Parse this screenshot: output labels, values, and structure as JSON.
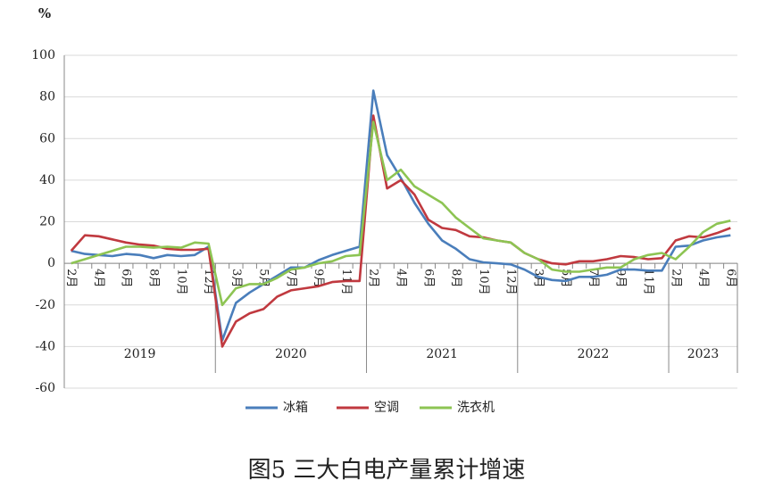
{
  "chart_data": {
    "type": "line",
    "title": "图5 三大白电产量累计增速",
    "y_unit": "%",
    "categories": [
      "2月",
      null,
      "4月",
      null,
      "6月",
      null,
      "8月",
      null,
      "10月",
      null,
      "12月",
      null,
      "3月",
      null,
      "5月",
      null,
      "7月",
      null,
      "9月",
      null,
      "11月",
      null,
      "2月",
      null,
      "4月",
      null,
      "6月",
      null,
      "8月",
      null,
      "10月",
      null,
      "12月",
      null,
      "3月",
      null,
      "5月",
      null,
      "7月",
      null,
      "9月",
      null,
      "11月",
      null,
      "2月",
      null,
      "4月",
      null,
      "6月"
    ],
    "groups": [
      {
        "label": "2019",
        "size": 11
      },
      {
        "label": "2020",
        "size": 11
      },
      {
        "label": "2021",
        "size": 11
      },
      {
        "label": "2022",
        "size": 11
      },
      {
        "label": "2023",
        "size": 5
      }
    ],
    "series": [
      {
        "name": "冰箱",
        "color": "#4a7ebb",
        "values": [
          6,
          4.5,
          4,
          3.5,
          4.5,
          4,
          2.5,
          4,
          3.5,
          4,
          8,
          -37,
          -19,
          -14,
          -10,
          -6,
          -2,
          -2,
          1.5,
          4,
          6,
          8,
          83,
          52,
          41,
          29,
          19,
          11,
          7,
          2,
          0.5,
          0,
          -0.5,
          -3,
          -6.5,
          -8,
          -8.5,
          -6.5,
          -6.5,
          -5.5,
          -3,
          -3,
          -3.5,
          -3.5,
          8,
          8.5,
          11,
          12.5,
          13.5
        ]
      },
      {
        "name": "空调",
        "color": "#c0393f",
        "values": [
          6,
          13.5,
          13,
          11.5,
          10,
          9,
          8.5,
          7,
          6.5,
          6.5,
          7,
          -40,
          -28,
          -24,
          -22,
          -16,
          -13,
          -12,
          -11,
          -9,
          -8.5,
          -8.5,
          71,
          36,
          40,
          33,
          21,
          17,
          16,
          13,
          12.5,
          11,
          10,
          5,
          2,
          0,
          -0.5,
          1,
          1,
          2,
          3.5,
          3,
          2,
          2.5,
          11,
          13,
          12.5,
          14.5,
          17
        ]
      },
      {
        "name": "洗衣机",
        "color": "#8dc453",
        "values": [
          0,
          2,
          4,
          6,
          8,
          8,
          7.5,
          8,
          7.5,
          10,
          9.5,
          -20,
          -12,
          -10,
          -10,
          -7,
          -3,
          -2,
          0,
          1,
          3.5,
          4,
          68,
          40,
          45,
          37,
          33,
          29,
          22,
          17,
          12,
          11,
          10,
          5,
          2,
          -3,
          -4,
          -4,
          -3,
          -2,
          -2,
          2,
          4,
          5,
          2,
          8,
          15,
          19,
          20.5
        ]
      }
    ],
    "ylim": [
      -60,
      100
    ],
    "yticks": [
      -60,
      -40,
      -20,
      0,
      20,
      40,
      60,
      80,
      100
    ],
    "grid": true,
    "legend": "bottom"
  }
}
